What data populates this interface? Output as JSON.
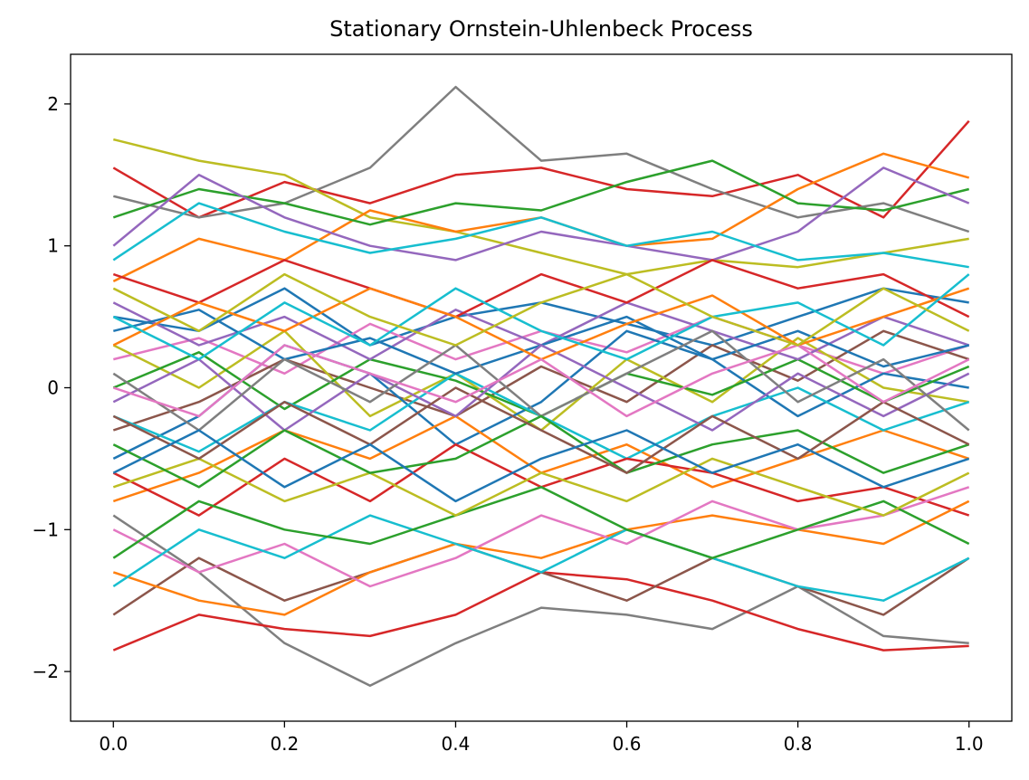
{
  "chart_data": {
    "type": "line",
    "title": "Stationary Ornstein-Uhlenbeck Process",
    "xlabel": "",
    "ylabel": "",
    "xlim": [
      -0.05,
      1.05
    ],
    "ylim": [
      -2.35,
      2.35
    ],
    "xticks": [
      {
        "value": 0.0,
        "label": "0.0"
      },
      {
        "value": 0.2,
        "label": "0.2"
      },
      {
        "value": 0.4,
        "label": "0.4"
      },
      {
        "value": 0.6,
        "label": "0.6"
      },
      {
        "value": 0.8,
        "label": "0.8"
      },
      {
        "value": 1.0,
        "label": "1.0"
      }
    ],
    "yticks": [
      {
        "value": 2,
        "label": "2"
      },
      {
        "value": 1,
        "label": "1"
      },
      {
        "value": 0,
        "label": "0"
      },
      {
        "value": -1,
        "label": "−1"
      },
      {
        "value": -2,
        "label": "−2"
      }
    ],
    "grid": false,
    "legend": "none",
    "x": [
      0.0,
      0.1,
      0.2,
      0.3,
      0.4,
      0.5,
      0.6,
      0.7,
      0.8,
      0.9,
      1.0
    ],
    "series": [
      {
        "color": "#d62728",
        "values": [
          1.55,
          1.2,
          1.45,
          1.3,
          1.5,
          1.55,
          1.4,
          1.35,
          1.5,
          1.2,
          1.88
        ]
      },
      {
        "color": "#7f7f7f",
        "values": [
          1.35,
          1.2,
          1.3,
          1.55,
          2.12,
          1.6,
          1.65,
          1.4,
          1.2,
          1.3,
          1.1
        ]
      },
      {
        "color": "#bcbd22",
        "values": [
          1.75,
          1.6,
          1.5,
          1.2,
          1.1,
          0.95,
          0.8,
          0.9,
          0.85,
          0.95,
          1.05
        ]
      },
      {
        "color": "#ff7f0e",
        "values": [
          0.75,
          1.05,
          0.9,
          1.25,
          1.1,
          1.2,
          1.0,
          1.05,
          1.4,
          1.65,
          1.48
        ]
      },
      {
        "color": "#2ca02c",
        "values": [
          1.2,
          1.4,
          1.3,
          1.15,
          1.3,
          1.25,
          1.45,
          1.6,
          1.3,
          1.25,
          1.4
        ]
      },
      {
        "color": "#9467bd",
        "values": [
          1.0,
          1.5,
          1.2,
          1.0,
          0.9,
          1.1,
          1.0,
          0.9,
          1.1,
          1.55,
          1.3
        ]
      },
      {
        "color": "#17becf",
        "values": [
          0.9,
          1.3,
          1.1,
          0.95,
          1.05,
          1.2,
          1.0,
          1.1,
          0.9,
          0.95,
          0.85
        ]
      },
      {
        "color": "#1f77b4",
        "values": [
          0.5,
          0.4,
          0.7,
          0.3,
          0.5,
          0.6,
          0.45,
          0.3,
          0.5,
          0.7,
          0.6
        ]
      },
      {
        "color": "#e377c2",
        "values": [
          0.2,
          0.35,
          0.1,
          0.45,
          0.2,
          0.4,
          0.25,
          0.5,
          0.3,
          0.1,
          0.3
        ]
      },
      {
        "color": "#8c564b",
        "values": [
          -0.3,
          -0.1,
          0.2,
          0.0,
          -0.2,
          0.15,
          -0.1,
          0.3,
          0.05,
          0.4,
          0.2
        ]
      },
      {
        "color": "#bcbd22",
        "values": [
          0.3,
          0.0,
          0.4,
          -0.2,
          0.1,
          -0.3,
          0.2,
          -0.1,
          0.35,
          0.0,
          -0.1
        ]
      },
      {
        "color": "#1f77b4",
        "values": [
          -0.5,
          -0.2,
          0.3,
          0.1,
          -0.4,
          -0.1,
          0.4,
          0.2,
          -0.2,
          0.1,
          0.0
        ]
      },
      {
        "color": "#ff7f0e",
        "values": [
          -0.8,
          -0.6,
          -0.3,
          -0.5,
          -0.2,
          -0.6,
          -0.4,
          -0.7,
          -0.5,
          -0.3,
          -0.5
        ]
      },
      {
        "color": "#2ca02c",
        "values": [
          0.0,
          0.25,
          -0.15,
          0.2,
          0.05,
          -0.2,
          0.1,
          -0.05,
          0.2,
          -0.1,
          0.15
        ]
      },
      {
        "color": "#17becf",
        "values": [
          -0.2,
          -0.45,
          -0.1,
          -0.3,
          0.1,
          -0.2,
          -0.5,
          -0.2,
          0.0,
          -0.3,
          -0.1
        ]
      },
      {
        "color": "#9467bd",
        "values": [
          0.6,
          0.3,
          0.5,
          0.2,
          0.55,
          0.3,
          0.6,
          0.4,
          0.2,
          0.5,
          0.3
        ]
      },
      {
        "color": "#d62728",
        "values": [
          -0.6,
          -0.9,
          -0.5,
          -0.8,
          -0.4,
          -0.7,
          -0.5,
          -0.6,
          -0.8,
          -0.7,
          -0.9
        ]
      },
      {
        "color": "#7f7f7f",
        "values": [
          -0.9,
          -1.3,
          -1.8,
          -2.1,
          -1.8,
          -1.55,
          -1.6,
          -1.7,
          -1.4,
          -1.75,
          -1.8
        ]
      },
      {
        "color": "#d62728",
        "values": [
          -1.85,
          -1.6,
          -1.7,
          -1.75,
          -1.6,
          -1.3,
          -1.35,
          -1.5,
          -1.7,
          -1.85,
          -1.82
        ]
      },
      {
        "color": "#8c564b",
        "values": [
          -1.6,
          -1.2,
          -1.5,
          -1.3,
          -1.1,
          -1.3,
          -1.5,
          -1.2,
          -1.4,
          -1.6,
          -1.2
        ]
      },
      {
        "color": "#ff7f0e",
        "values": [
          -1.3,
          -1.5,
          -1.6,
          -1.3,
          -1.1,
          -1.2,
          -1.0,
          -0.9,
          -1.0,
          -1.1,
          -0.8
        ]
      },
      {
        "color": "#e377c2",
        "values": [
          -1.0,
          -1.3,
          -1.1,
          -1.4,
          -1.2,
          -0.9,
          -1.1,
          -0.8,
          -1.0,
          -0.9,
          -0.7
        ]
      },
      {
        "color": "#17becf",
        "values": [
          -1.4,
          -1.0,
          -1.2,
          -0.9,
          -1.1,
          -1.3,
          -1.0,
          -1.2,
          -1.4,
          -1.5,
          -1.2
        ]
      },
      {
        "color": "#2ca02c",
        "values": [
          -1.2,
          -0.8,
          -1.0,
          -1.1,
          -0.9,
          -0.7,
          -1.0,
          -1.2,
          -1.0,
          -0.8,
          -1.1
        ]
      },
      {
        "color": "#bcbd22",
        "values": [
          -0.7,
          -0.5,
          -0.8,
          -0.6,
          -0.9,
          -0.6,
          -0.8,
          -0.5,
          -0.7,
          -0.9,
          -0.6
        ]
      },
      {
        "color": "#1f77b4",
        "values": [
          0.4,
          0.55,
          0.2,
          0.35,
          0.1,
          0.3,
          0.5,
          0.2,
          0.4,
          0.15,
          0.3
        ]
      },
      {
        "color": "#9467bd",
        "values": [
          -0.1,
          0.2,
          -0.3,
          0.1,
          -0.2,
          0.3,
          0.0,
          -0.3,
          0.1,
          -0.2,
          0.1
        ]
      },
      {
        "color": "#7f7f7f",
        "values": [
          0.1,
          -0.3,
          0.2,
          -0.1,
          0.3,
          -0.2,
          0.1,
          0.4,
          -0.1,
          0.2,
          -0.3
        ]
      },
      {
        "color": "#d62728",
        "values": [
          0.8,
          0.6,
          0.9,
          0.7,
          0.5,
          0.8,
          0.6,
          0.9,
          0.7,
          0.8,
          0.5
        ]
      },
      {
        "color": "#2ca02c",
        "values": [
          -0.4,
          -0.7,
          -0.3,
          -0.6,
          -0.5,
          -0.2,
          -0.6,
          -0.4,
          -0.3,
          -0.6,
          -0.4
        ]
      },
      {
        "color": "#ff7f0e",
        "values": [
          0.3,
          0.6,
          0.4,
          0.7,
          0.5,
          0.2,
          0.45,
          0.65,
          0.3,
          0.5,
          0.7
        ]
      },
      {
        "color": "#17becf",
        "values": [
          0.5,
          0.2,
          0.6,
          0.3,
          0.7,
          0.4,
          0.2,
          0.5,
          0.6,
          0.3,
          0.8
        ]
      },
      {
        "color": "#8c564b",
        "values": [
          -0.2,
          -0.5,
          -0.1,
          -0.4,
          0.0,
          -0.3,
          -0.6,
          -0.2,
          -0.5,
          -0.1,
          -0.4
        ]
      },
      {
        "color": "#e377c2",
        "values": [
          0.0,
          -0.2,
          0.3,
          0.1,
          -0.1,
          0.2,
          -0.2,
          0.1,
          0.3,
          -0.1,
          0.2
        ]
      },
      {
        "color": "#bcbd22",
        "values": [
          0.7,
          0.4,
          0.8,
          0.5,
          0.3,
          0.6,
          0.8,
          0.5,
          0.3,
          0.7,
          0.4
        ]
      },
      {
        "color": "#1f77b4",
        "values": [
          -0.6,
          -0.3,
          -0.7,
          -0.4,
          -0.8,
          -0.5,
          -0.3,
          -0.6,
          -0.4,
          -0.7,
          -0.5
        ]
      }
    ]
  }
}
